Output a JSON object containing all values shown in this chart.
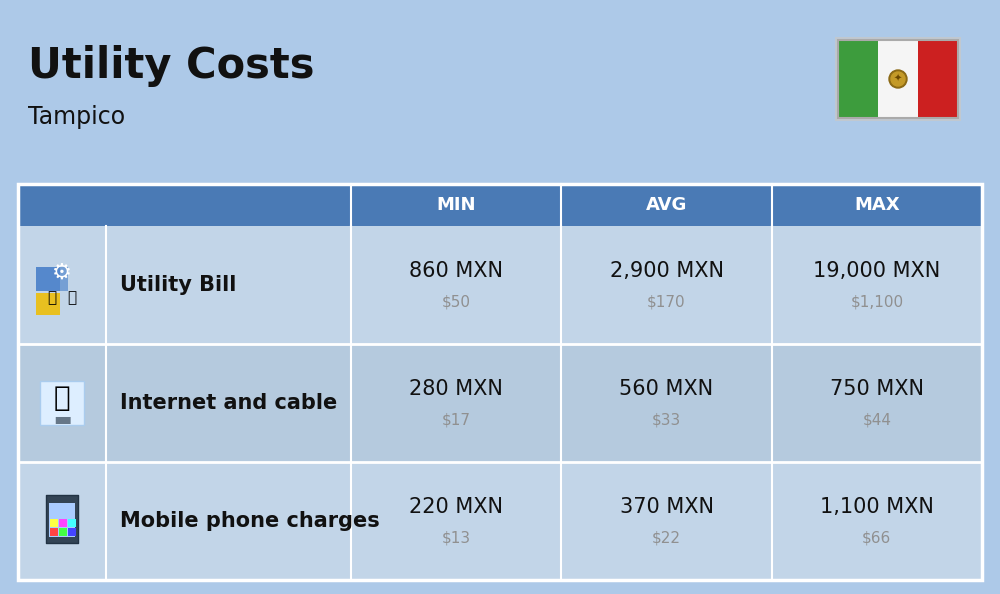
{
  "title": "Utility Costs",
  "subtitle": "Tampico",
  "background_color": "#adc9e8",
  "header_color": "#4a7ab5",
  "header_text_color": "#ffffff",
  "row_color_odd": "#c2d5e8",
  "row_color_even": "#b5cade",
  "table_border_color": "#ffffff",
  "rows": [
    {
      "label": "Utility Bill",
      "min_mxn": "860 MXN",
      "min_usd": "$50",
      "avg_mxn": "2,900 MXN",
      "avg_usd": "$170",
      "max_mxn": "19,000 MXN",
      "max_usd": "$1,100"
    },
    {
      "label": "Internet and cable",
      "min_mxn": "280 MXN",
      "min_usd": "$17",
      "avg_mxn": "560 MXN",
      "avg_usd": "$33",
      "max_mxn": "750 MXN",
      "max_usd": "$44"
    },
    {
      "label": "Mobile phone charges",
      "min_mxn": "220 MXN",
      "min_usd": "$13",
      "avg_mxn": "370 MXN",
      "avg_usd": "$22",
      "max_mxn": "1,100 MXN",
      "max_usd": "$66"
    }
  ],
  "title_fontsize": 30,
  "subtitle_fontsize": 17,
  "header_fontsize": 13,
  "cell_mxn_fontsize": 15,
  "cell_usd_fontsize": 11,
  "label_fontsize": 15,
  "flag_colors": [
    "#3a9e3a",
    "#ffffff",
    "#cc2222"
  ],
  "usd_color": "#909090",
  "text_color": "#111111"
}
